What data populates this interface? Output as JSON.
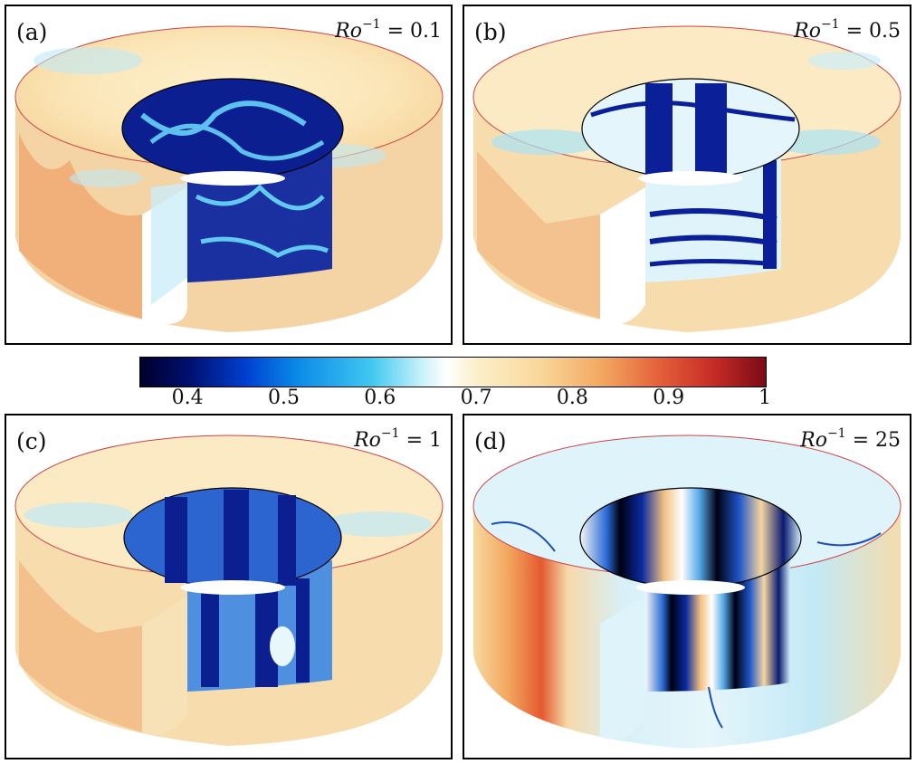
{
  "panels": [
    {
      "label": "(a)",
      "ro_symbol": "Ro",
      "ro_exp": "−1",
      "ro_value": "= 0.1"
    },
    {
      "label": "(b)",
      "ro_symbol": "Ro",
      "ro_exp": "−1",
      "ro_value": "= 0.5"
    },
    {
      "label": "(c)",
      "ro_symbol": "Ro",
      "ro_exp": "−1",
      "ro_value": "= 1"
    },
    {
      "label": "(d)",
      "ro_symbol": "Ro",
      "ro_exp": "−1",
      "ro_value": "= 25"
    }
  ],
  "colorbar": {
    "ticks": [
      "0.4",
      "0.5",
      "0.6",
      "0.7",
      "0.8",
      "0.9",
      "1"
    ],
    "range": [
      0.35,
      1.0
    ],
    "colors": [
      "#00002a",
      "#0040d0",
      "#40c8f0",
      "#ffffff",
      "#f9d79a",
      "#e4603a",
      "#7a0a18"
    ]
  }
}
